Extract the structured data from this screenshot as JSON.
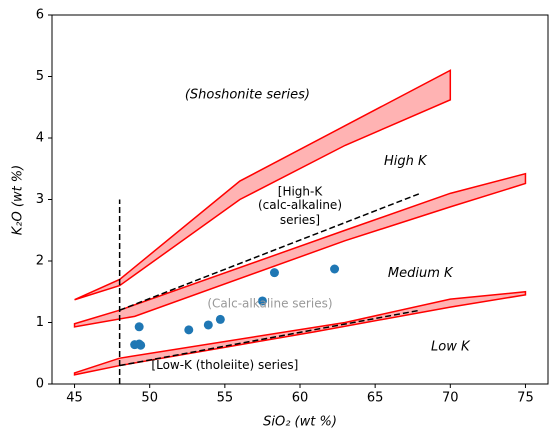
{
  "chart_data": {
    "type": "scatter",
    "xlabel": "SiO₂ (wt %)",
    "ylabel": "K₂O (wt %)",
    "xlim": [
      43.5,
      76.5
    ],
    "ylim": [
      0,
      6
    ],
    "xticks": [
      45,
      50,
      55,
      60,
      65,
      70,
      75
    ],
    "yticks": [
      0,
      1,
      2,
      3,
      4,
      5,
      6
    ],
    "fill_color": "#ffb3b3",
    "edge_color": "#ff0000",
    "line_color": "#000000",
    "fills": [
      {
        "x": [
          45,
          48,
          56,
          63,
          70,
          70,
          63,
          56,
          48,
          45
        ],
        "y": [
          1.37,
          1.7,
          3.3,
          4.2,
          5.1,
          4.62,
          3.88,
          3.0,
          1.6,
          1.37
        ]
      },
      {
        "x": [
          45,
          48,
          63,
          70,
          75,
          75,
          70,
          63,
          49,
          45
        ],
        "y": [
          0.98,
          1.2,
          2.5,
          3.1,
          3.42,
          3.26,
          2.88,
          2.33,
          1.1,
          0.93
        ]
      },
      {
        "x": [
          45,
          48,
          63,
          70,
          75,
          75,
          70,
          61,
          48,
          45
        ],
        "y": [
          0.18,
          0.42,
          1.0,
          1.38,
          1.5,
          1.45,
          1.25,
          0.85,
          0.3,
          0.15
        ]
      }
    ],
    "lines": [
      {
        "x": [
          48,
          48
        ],
        "y": [
          0,
          3
        ]
      },
      {
        "x": [
          48,
          68
        ],
        "y": [
          1.2,
          3.1
        ]
      },
      {
        "x": [
          48,
          68
        ],
        "y": [
          0.3,
          1.2
        ]
      }
    ],
    "points": {
      "color": "#1f77b4",
      "x": [
        49.0,
        49.3,
        49.3,
        49.4,
        52.6,
        53.9,
        54.7,
        57.5,
        58.3,
        62.3
      ],
      "y": [
        0.64,
        0.93,
        0.65,
        0.63,
        0.88,
        0.96,
        1.05,
        1.35,
        1.81,
        1.87
      ]
    },
    "annotations": [
      "(Shoshonite series)",
      "High K",
      "[High-K",
      "(calc-alkaline)",
      "series]",
      "Medium K",
      "(Calc-alkaline series)",
      "Low K",
      "[Low-K (tholeiite) series]"
    ]
  }
}
